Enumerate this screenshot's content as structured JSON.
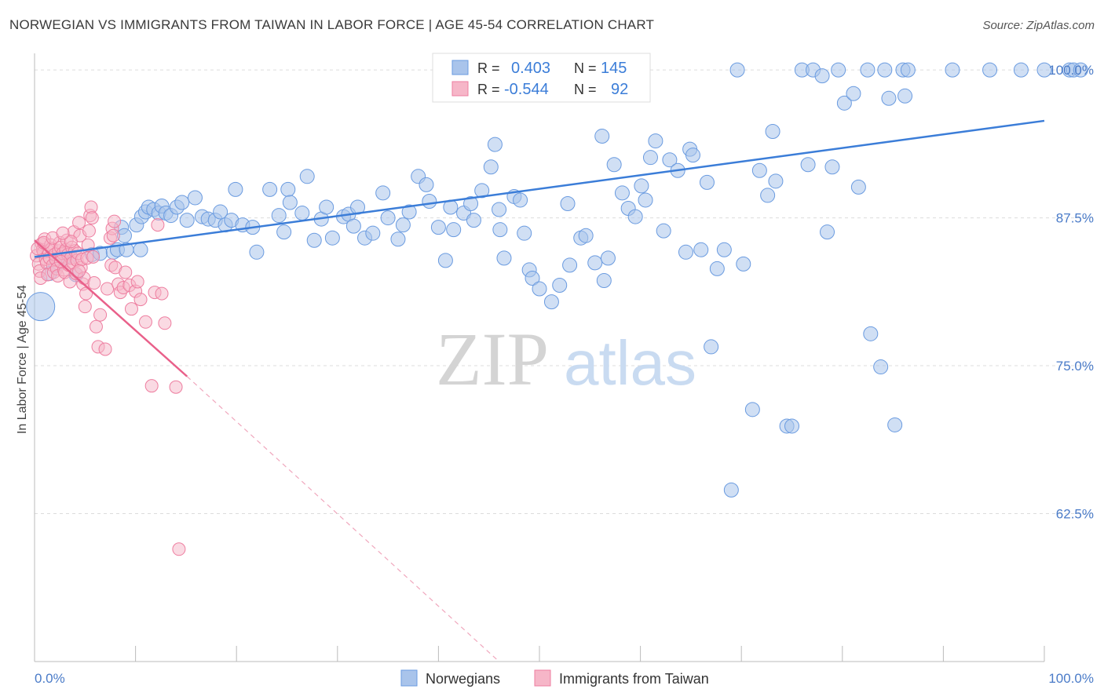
{
  "title": "NORWEGIAN VS IMMIGRANTS FROM TAIWAN IN LABOR FORCE | AGE 45-54 CORRELATION CHART",
  "source": "Source: ZipAtlas.com",
  "watermark": {
    "zip": "ZIP",
    "atlas": "atlas"
  },
  "legend": {
    "r_label": "R =",
    "n_label": "N =",
    "rows": [
      {
        "r": "0.403",
        "n": "145",
        "color": "#a9c4eb"
      },
      {
        "r": "-0.544",
        "n": "92",
        "color": "#f6b6c8"
      }
    ]
  },
  "bottom_legend": [
    "Norwegians",
    "Immigrants from Taiwan"
  ],
  "chart_data": {
    "type": "scatter",
    "title": "NORWEGIAN VS IMMIGRANTS FROM TAIWAN IN LABOR FORCE | AGE 45-54 CORRELATION CHART",
    "xlabel": "",
    "ylabel": "In Labor Force | Age 45-54",
    "x_tick_labels": [
      "0.0%",
      "100.0%"
    ],
    "y_tick_labels": [
      "100.0%",
      "87.5%",
      "75.0%",
      "62.5%"
    ],
    "y_ticks": [
      100,
      87.5,
      75,
      62.5
    ],
    "xlim": [
      0,
      100
    ],
    "ylim": [
      50,
      101.4
    ],
    "grid": true,
    "colors": {
      "norwegians": "#6a9be0",
      "taiwan": "#ee7ea0",
      "norwegians_line": "#3b7dd8",
      "taiwan_line": "#e9608a"
    },
    "series": [
      {
        "name": "Norwegians",
        "r": 0.403,
        "n": 145,
        "trend": {
          "x0": 0,
          "y0": 84.2,
          "x1": 100,
          "y1": 95.7
        },
        "points": [
          [
            0.6,
            80.0
          ],
          [
            1.5,
            82.8
          ],
          [
            2.1,
            83.5
          ],
          [
            2.9,
            84.1
          ],
          [
            3.5,
            84.3
          ],
          [
            4.1,
            82.7
          ],
          [
            5.7,
            84.4
          ],
          [
            6.5,
            84.5
          ],
          [
            7.8,
            84.6
          ],
          [
            8.2,
            84.8
          ],
          [
            9.1,
            84.8
          ],
          [
            10.5,
            84.8
          ],
          [
            8.6,
            86.7
          ],
          [
            8.9,
            86.0
          ],
          [
            10.1,
            86.9
          ],
          [
            10.6,
            87.6
          ],
          [
            11.0,
            88.0
          ],
          [
            11.3,
            88.4
          ],
          [
            11.8,
            88.2
          ],
          [
            12.3,
            87.9
          ],
          [
            12.6,
            88.5
          ],
          [
            13.0,
            87.9
          ],
          [
            13.5,
            87.7
          ],
          [
            14.1,
            88.4
          ],
          [
            14.6,
            88.8
          ],
          [
            15.1,
            87.3
          ],
          [
            15.9,
            89.2
          ],
          [
            16.6,
            87.6
          ],
          [
            17.2,
            87.4
          ],
          [
            17.9,
            87.3
          ],
          [
            18.4,
            88.0
          ],
          [
            18.9,
            86.9
          ],
          [
            19.5,
            87.3
          ],
          [
            19.9,
            89.9
          ],
          [
            20.6,
            86.9
          ],
          [
            21.6,
            86.7
          ],
          [
            22.0,
            84.6
          ],
          [
            23.3,
            89.9
          ],
          [
            24.2,
            87.7
          ],
          [
            24.7,
            86.3
          ],
          [
            25.1,
            89.9
          ],
          [
            25.3,
            88.8
          ],
          [
            26.5,
            87.9
          ],
          [
            27.0,
            91.0
          ],
          [
            27.7,
            85.6
          ],
          [
            28.4,
            87.4
          ],
          [
            28.9,
            88.4
          ],
          [
            29.5,
            85.8
          ],
          [
            30.6,
            87.6
          ],
          [
            31.1,
            87.8
          ],
          [
            31.6,
            86.8
          ],
          [
            32.0,
            88.4
          ],
          [
            32.7,
            85.8
          ],
          [
            33.5,
            86.2
          ],
          [
            34.5,
            89.6
          ],
          [
            35.0,
            87.5
          ],
          [
            36.0,
            85.7
          ],
          [
            36.5,
            86.9
          ],
          [
            37.1,
            88.0
          ],
          [
            38.0,
            91.0
          ],
          [
            38.8,
            90.3
          ],
          [
            39.1,
            88.9
          ],
          [
            40.0,
            86.7
          ],
          [
            40.7,
            83.9
          ],
          [
            41.2,
            88.4
          ],
          [
            41.5,
            86.5
          ],
          [
            42.5,
            87.9
          ],
          [
            43.2,
            88.7
          ],
          [
            43.5,
            87.3
          ],
          [
            44.3,
            89.8
          ],
          [
            45.2,
            91.8
          ],
          [
            45.6,
            93.7
          ],
          [
            46.0,
            88.2
          ],
          [
            46.1,
            86.5
          ],
          [
            46.5,
            84.1
          ],
          [
            47.5,
            89.3
          ],
          [
            48.1,
            89.0
          ],
          [
            48.5,
            86.2
          ],
          [
            49.0,
            83.1
          ],
          [
            49.3,
            82.4
          ],
          [
            50.0,
            81.5
          ],
          [
            51.2,
            80.4
          ],
          [
            52.0,
            81.8
          ],
          [
            52.8,
            88.7
          ],
          [
            53.0,
            83.5
          ],
          [
            54.1,
            85.8
          ],
          [
            54.6,
            86.0
          ],
          [
            55.5,
            83.7
          ],
          [
            56.2,
            94.4
          ],
          [
            56.4,
            82.2
          ],
          [
            56.8,
            84.1
          ],
          [
            57.4,
            92.0
          ],
          [
            58.2,
            89.6
          ],
          [
            58.8,
            88.3
          ],
          [
            59.5,
            87.6
          ],
          [
            60.1,
            90.2
          ],
          [
            60.5,
            89.0
          ],
          [
            61.0,
            92.6
          ],
          [
            61.5,
            94.0
          ],
          [
            62.3,
            86.4
          ],
          [
            62.9,
            92.4
          ],
          [
            63.7,
            91.5
          ],
          [
            64.5,
            84.6
          ],
          [
            64.9,
            93.3
          ],
          [
            65.2,
            92.8
          ],
          [
            66.0,
            84.8
          ],
          [
            66.6,
            90.5
          ],
          [
            67.0,
            76.6
          ],
          [
            67.6,
            83.2
          ],
          [
            68.3,
            84.8
          ],
          [
            69.0,
            64.5
          ],
          [
            69.6,
            100.0
          ],
          [
            70.2,
            83.6
          ],
          [
            71.1,
            71.3
          ],
          [
            71.8,
            91.5
          ],
          [
            72.6,
            89.4
          ],
          [
            73.1,
            94.8
          ],
          [
            73.4,
            90.6
          ],
          [
            74.5,
            69.9
          ],
          [
            75.0,
            69.9
          ],
          [
            76.0,
            100.0
          ],
          [
            76.6,
            92.0
          ],
          [
            77.1,
            100.0
          ],
          [
            78.0,
            99.5
          ],
          [
            78.5,
            86.3
          ],
          [
            79.0,
            91.8
          ],
          [
            79.6,
            100.0
          ],
          [
            80.2,
            97.2
          ],
          [
            81.1,
            98.0
          ],
          [
            81.6,
            90.1
          ],
          [
            82.5,
            100.0
          ],
          [
            82.8,
            77.7
          ],
          [
            83.8,
            74.9
          ],
          [
            84.2,
            100.0
          ],
          [
            84.6,
            97.6
          ],
          [
            85.2,
            70.0
          ],
          [
            86.0,
            100.0
          ],
          [
            86.2,
            97.8
          ],
          [
            86.5,
            100.0
          ],
          [
            90.9,
            100.0
          ],
          [
            94.6,
            100.0
          ],
          [
            97.7,
            100.0
          ],
          [
            100.0,
            100.0
          ],
          [
            102.5,
            100.0
          ],
          [
            102.9,
            100.0
          ],
          [
            103.6,
            100.0
          ]
        ]
      },
      {
        "name": "Immigrants from Taiwan",
        "r": -0.544,
        "n": 92,
        "trend": {
          "x0": 0,
          "y0": 85.6,
          "x1": 15.1,
          "y1": 74.1,
          "dash_x1": 46.0,
          "dash_y1": 50.0
        },
        "points": [
          [
            0.2,
            84.3
          ],
          [
            0.4,
            83.6
          ],
          [
            0.5,
            83.0
          ],
          [
            0.6,
            82.4
          ],
          [
            0.7,
            85.3
          ],
          [
            0.8,
            84.8
          ],
          [
            0.9,
            84.6
          ],
          [
            1.0,
            85.7
          ],
          [
            1.1,
            84.0
          ],
          [
            1.2,
            83.7
          ],
          [
            1.3,
            82.7
          ],
          [
            1.4,
            84.7
          ],
          [
            1.5,
            84.1
          ],
          [
            1.6,
            85.2
          ],
          [
            1.7,
            84.9
          ],
          [
            1.8,
            83.5
          ],
          [
            1.9,
            82.9
          ],
          [
            2.0,
            84.4
          ],
          [
            2.1,
            84.0
          ],
          [
            2.2,
            83.2
          ],
          [
            2.3,
            82.6
          ],
          [
            2.4,
            84.7
          ],
          [
            2.5,
            85.4
          ],
          [
            2.6,
            85.0
          ],
          [
            2.7,
            84.2
          ],
          [
            2.8,
            84.5
          ],
          [
            2.9,
            83.1
          ],
          [
            3.0,
            82.9
          ],
          [
            3.1,
            84.8
          ],
          [
            3.2,
            85.6
          ],
          [
            3.3,
            84.4
          ],
          [
            3.4,
            83.5
          ],
          [
            3.5,
            82.1
          ],
          [
            3.6,
            84.1
          ],
          [
            3.7,
            85.0
          ],
          [
            3.8,
            83.7
          ],
          [
            3.9,
            86.3
          ],
          [
            4.0,
            84.7
          ],
          [
            4.1,
            82.8
          ],
          [
            4.2,
            83.9
          ],
          [
            4.3,
            84.5
          ],
          [
            4.4,
            87.1
          ],
          [
            4.5,
            86.0
          ],
          [
            4.6,
            83.3
          ],
          [
            4.7,
            84.0
          ],
          [
            4.8,
            81.9
          ],
          [
            4.9,
            82.4
          ],
          [
            5.0,
            80.0
          ],
          [
            5.1,
            81.1
          ],
          [
            5.2,
            84.1
          ],
          [
            5.3,
            85.2
          ],
          [
            5.4,
            86.4
          ],
          [
            5.5,
            87.7
          ],
          [
            5.6,
            88.4
          ],
          [
            5.7,
            87.5
          ],
          [
            5.8,
            84.2
          ],
          [
            5.9,
            82.0
          ],
          [
            6.1,
            78.3
          ],
          [
            6.3,
            76.6
          ],
          [
            6.5,
            79.3
          ],
          [
            7.0,
            76.4
          ],
          [
            7.2,
            81.5
          ],
          [
            7.5,
            85.8
          ],
          [
            7.6,
            83.5
          ],
          [
            7.7,
            86.6
          ],
          [
            7.8,
            86.0
          ],
          [
            7.9,
            87.2
          ],
          [
            8.0,
            83.3
          ],
          [
            8.3,
            81.9
          ],
          [
            8.5,
            81.2
          ],
          [
            8.8,
            81.6
          ],
          [
            9.0,
            82.9
          ],
          [
            9.4,
            81.8
          ],
          [
            9.6,
            79.8
          ],
          [
            10.0,
            81.3
          ],
          [
            10.2,
            82.1
          ],
          [
            10.5,
            80.6
          ],
          [
            11.0,
            78.7
          ],
          [
            11.6,
            73.3
          ],
          [
            11.9,
            81.2
          ],
          [
            12.2,
            86.9
          ],
          [
            12.6,
            81.1
          ],
          [
            12.9,
            78.6
          ],
          [
            14.0,
            73.2
          ],
          [
            14.3,
            59.5
          ],
          [
            0.3,
            84.9
          ],
          [
            0.9,
            85.4
          ],
          [
            1.8,
            85.8
          ],
          [
            2.6,
            83.8
          ],
          [
            3.6,
            85.5
          ],
          [
            4.4,
            83.0
          ],
          [
            2.8,
            86.2
          ]
        ]
      }
    ]
  }
}
